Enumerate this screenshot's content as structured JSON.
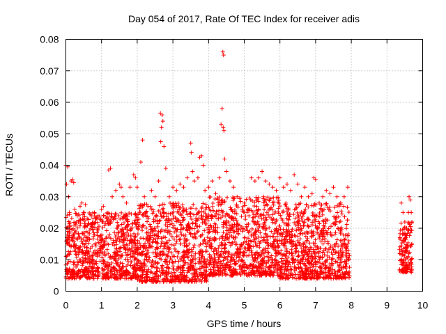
{
  "chart_data": {
    "type": "scatter",
    "title": "Day 054 of 2017, Rate Of TEC Index for receiver adis",
    "xlabel": "GPS time / hours",
    "ylabel": "ROTI / TECUs",
    "xlim": [
      0,
      10
    ],
    "ylim": [
      0,
      0.08
    ],
    "xticks": [
      0,
      1,
      2,
      3,
      4,
      5,
      6,
      7,
      8,
      9,
      10
    ],
    "xtick_labels": [
      "0",
      "1",
      "2",
      "3",
      "4",
      "5",
      "6",
      "7",
      "8",
      "9",
      "10"
    ],
    "yticks": [
      0,
      0.01,
      0.02,
      0.03,
      0.04,
      0.05,
      0.06,
      0.07,
      0.08
    ],
    "ytick_labels": [
      "0",
      "0.01",
      "0.02",
      "0.03",
      "0.04",
      "0.05",
      "0.06",
      "0.07",
      "0.08"
    ],
    "grid": true,
    "legend": "none",
    "marker": "plus",
    "color": "#ff0000",
    "series": [
      {
        "points": [
          [
            0.0,
            0.04
          ],
          [
            0.05,
            0.0395
          ],
          [
            0.02,
            0.034
          ],
          [
            0.08,
            0.03
          ],
          [
            0.1,
            0.025
          ],
          [
            0.12,
            0.02
          ],
          [
            0.15,
            0.035
          ],
          [
            0.18,
            0.0355
          ],
          [
            0.22,
            0.0345
          ],
          [
            0.25,
            0.026
          ],
          [
            0.3,
            0.022
          ],
          [
            0.35,
            0.018
          ],
          [
            0.4,
            0.027
          ],
          [
            0.45,
            0.028
          ],
          [
            0.5,
            0.025
          ],
          [
            0.55,
            0.0275
          ],
          [
            0.6,
            0.023
          ],
          [
            0.7,
            0.02
          ],
          [
            0.8,
            0.018
          ],
          [
            0.9,
            0.02
          ],
          [
            1.0,
            0.026
          ],
          [
            1.05,
            0.027
          ],
          [
            1.2,
            0.0385
          ],
          [
            1.25,
            0.039
          ],
          [
            1.3,
            0.03
          ],
          [
            1.4,
            0.032
          ],
          [
            1.5,
            0.034
          ],
          [
            1.55,
            0.033
          ],
          [
            1.6,
            0.03
          ],
          [
            1.7,
            0.028
          ],
          [
            1.8,
            0.033
          ],
          [
            1.9,
            0.037
          ],
          [
            1.95,
            0.036
          ],
          [
            2.0,
            0.033
          ],
          [
            2.1,
            0.041
          ],
          [
            2.15,
            0.048
          ],
          [
            2.2,
            0.03
          ],
          [
            2.3,
            0.027
          ],
          [
            2.4,
            0.032
          ],
          [
            2.5,
            0.03
          ],
          [
            2.6,
            0.035
          ],
          [
            2.65,
            0.0565
          ],
          [
            2.7,
            0.056
          ],
          [
            2.72,
            0.054
          ],
          [
            2.68,
            0.052
          ],
          [
            2.66,
            0.0475
          ],
          [
            2.75,
            0.046
          ],
          [
            2.8,
            0.039
          ],
          [
            2.9,
            0.03
          ],
          [
            3.0,
            0.033
          ],
          [
            3.1,
            0.032
          ],
          [
            3.2,
            0.034
          ],
          [
            3.3,
            0.033
          ],
          [
            3.4,
            0.036
          ],
          [
            3.5,
            0.047
          ],
          [
            3.52,
            0.044
          ],
          [
            3.55,
            0.038
          ],
          [
            3.6,
            0.035
          ],
          [
            3.7,
            0.036
          ],
          [
            3.75,
            0.0425
          ],
          [
            3.8,
            0.043
          ],
          [
            3.85,
            0.04
          ],
          [
            3.9,
            0.032
          ],
          [
            4.0,
            0.033
          ],
          [
            4.1,
            0.035
          ],
          [
            4.2,
            0.031
          ],
          [
            4.3,
            0.036
          ],
          [
            4.35,
            0.053
          ],
          [
            4.38,
            0.058
          ],
          [
            4.4,
            0.076
          ],
          [
            4.42,
            0.075
          ],
          [
            4.41,
            0.052
          ],
          [
            4.43,
            0.051
          ],
          [
            4.45,
            0.042
          ],
          [
            4.5,
            0.038
          ],
          [
            4.6,
            0.035
          ],
          [
            4.7,
            0.033
          ],
          [
            4.8,
            0.03
          ],
          [
            4.9,
            0.0285
          ],
          [
            5.0,
            0.028
          ],
          [
            5.1,
            0.026
          ],
          [
            5.2,
            0.036
          ],
          [
            5.3,
            0.035
          ],
          [
            5.4,
            0.036
          ],
          [
            5.5,
            0.038
          ],
          [
            5.6,
            0.035
          ],
          [
            5.7,
            0.034
          ],
          [
            5.8,
            0.033
          ],
          [
            5.9,
            0.032
          ],
          [
            6.0,
            0.036
          ],
          [
            6.1,
            0.033
          ],
          [
            6.2,
            0.034
          ],
          [
            6.3,
            0.032
          ],
          [
            6.4,
            0.037
          ],
          [
            6.5,
            0.034
          ],
          [
            6.6,
            0.03
          ],
          [
            6.7,
            0.033
          ],
          [
            6.8,
            0.03
          ],
          [
            6.9,
            0.031
          ],
          [
            6.95,
            0.036
          ],
          [
            7.0,
            0.0355
          ],
          [
            7.1,
            0.028
          ],
          [
            7.2,
            0.03
          ],
          [
            7.3,
            0.032
          ],
          [
            7.4,
            0.031
          ],
          [
            7.5,
            0.033
          ],
          [
            7.6,
            0.03
          ],
          [
            7.7,
            0.028
          ],
          [
            7.8,
            0.03
          ],
          [
            7.9,
            0.033
          ],
          [
            9.4,
            0.028
          ],
          [
            9.45,
            0.025
          ],
          [
            9.5,
            0.022
          ],
          [
            9.55,
            0.02
          ],
          [
            9.6,
            0.025
          ],
          [
            9.62,
            0.03
          ],
          [
            9.65,
            0.029
          ],
          [
            9.68,
            0.025
          ],
          [
            9.7,
            0.022
          ]
        ],
        "dense_bands": [
          {
            "x_range": [
              0.0,
              2.0
            ],
            "y_range": [
              0.004,
              0.025
            ]
          },
          {
            "x_range": [
              2.0,
              4.0
            ],
            "y_range": [
              0.003,
              0.028
            ]
          },
          {
            "x_range": [
              4.0,
              6.0
            ],
            "y_range": [
              0.005,
              0.03
            ]
          },
          {
            "x_range": [
              6.0,
              7.95
            ],
            "y_range": [
              0.004,
              0.028
            ]
          },
          {
            "x_range": [
              9.35,
              9.7
            ],
            "y_range": [
              0.006,
              0.022
            ]
          }
        ]
      }
    ]
  }
}
